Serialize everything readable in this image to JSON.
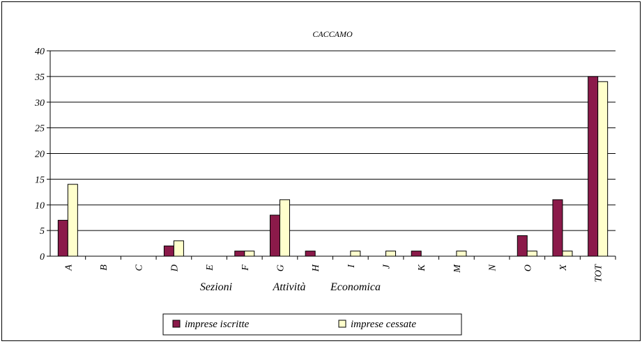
{
  "chart_data": {
    "type": "bar",
    "title": "CACCAMO",
    "xlabel": [
      "Sezioni",
      "Attività",
      "Economica"
    ],
    "ylabel": "",
    "categories": [
      "A",
      "B",
      "C",
      "D",
      "E",
      "F",
      "G",
      "H",
      "I",
      "J",
      "K",
      "M",
      "N",
      "O",
      "X",
      "TOT"
    ],
    "series": [
      {
        "name": "imprese iscritte",
        "color": "#8B1A4A",
        "values": [
          7,
          0,
          0,
          2,
          0,
          1,
          8,
          1,
          0,
          0,
          1,
          0,
          0,
          4,
          11,
          35
        ]
      },
      {
        "name": "imprese cessate",
        "color": "#FFFFCC",
        "values": [
          14,
          0,
          0,
          3,
          0,
          1,
          11,
          0,
          1,
          1,
          0,
          1,
          0,
          1,
          1,
          34
        ]
      }
    ],
    "ylim": [
      0,
      40
    ],
    "yticks": [
      0,
      5,
      10,
      15,
      20,
      25,
      30,
      35,
      40
    ],
    "grid": true,
    "legend": "bottom"
  }
}
